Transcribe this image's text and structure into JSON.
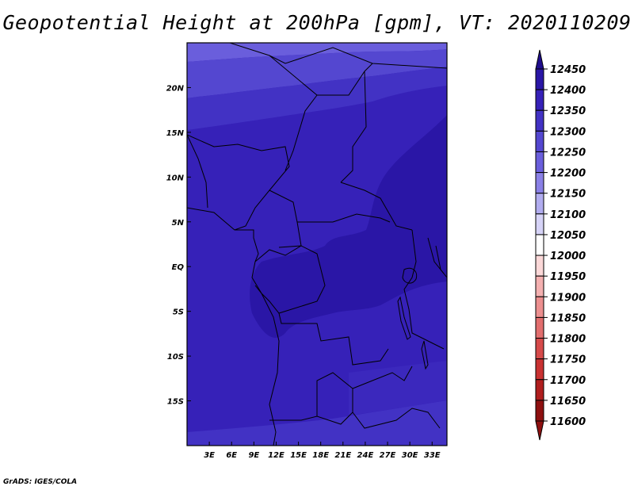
{
  "title": "Geopotential Height at 200hPa [gpm], VT: 2020110209",
  "credit": "GrADS: IGES/COLA",
  "map": {
    "lon_range": [
      0,
      35
    ],
    "lat_range": [
      -20,
      25
    ],
    "x_ticks": [
      "3E",
      "6E",
      "9E",
      "12E",
      "15E",
      "18E",
      "21E",
      "24E",
      "27E",
      "30E",
      "33E"
    ],
    "x_tick_values": [
      3,
      6,
      9,
      12,
      15,
      18,
      21,
      24,
      27,
      30,
      33
    ],
    "y_ticks": [
      "20N",
      "15N",
      "10N",
      "5N",
      "EQ",
      "5S",
      "10S",
      "15S"
    ],
    "y_tick_values": [
      20,
      15,
      10,
      5,
      0,
      -5,
      -10,
      -15
    ]
  },
  "colorbar": {
    "labels": [
      "12450",
      "12400",
      "12350",
      "12300",
      "12250",
      "12200",
      "12150",
      "12100",
      "12050",
      "12000",
      "11950",
      "11900",
      "11850",
      "11800",
      "11750",
      "11700",
      "11650",
      "11600"
    ],
    "colors": [
      "#1f0c8c",
      "#2a16a6",
      "#3621b8",
      "#4232c4",
      "#5447d0",
      "#6a5edc",
      "#8a80e6",
      "#b1acef",
      "#d6d3f7",
      "#ffffff",
      "#fbd8d8",
      "#f4b0b0",
      "#ec8f8f",
      "#e26e6e",
      "#d64a4a",
      "#c93232",
      "#b01e1e",
      "#8e1010"
    ]
  }
}
